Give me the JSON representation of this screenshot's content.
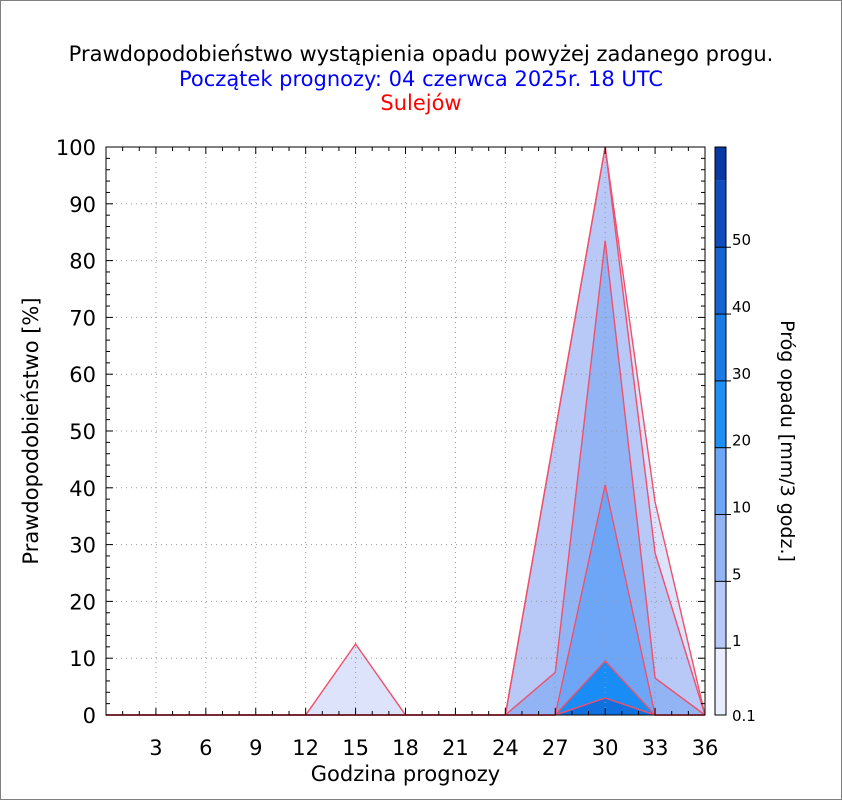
{
  "chart_data": {
    "type": "area",
    "title": "Prawdopodobieństwo wystąpienia opadu powyżej zadanego progu.",
    "subtitle": "Początek prognozy: 04 czerwca 2025r. 18 UTC",
    "location": "Sulejów",
    "xlabel": "Godzina prognozy",
    "ylabel": "Prawdopodobieństwo [%]",
    "colorbar_label": "Próg opadu [mm/3 godz.]",
    "xlim": [
      0,
      36
    ],
    "ylim": [
      0,
      100
    ],
    "xticks": [
      3,
      6,
      9,
      12,
      15,
      18,
      21,
      24,
      27,
      30,
      33,
      36
    ],
    "yticks": [
      0,
      10,
      20,
      30,
      40,
      50,
      60,
      70,
      80,
      90,
      100
    ],
    "grid": true,
    "x": [
      0,
      3,
      6,
      9,
      12,
      15,
      18,
      21,
      24,
      27,
      30,
      33,
      36
    ],
    "series": [
      {
        "name": "0.1",
        "color": "#dde3fb",
        "values": [
          0,
          0,
          0,
          0,
          0,
          12.5,
          0,
          0,
          0,
          50,
          100,
          37.5,
          0
        ]
      },
      {
        "name": "1",
        "color": "#b8c8f7",
        "values": [
          0,
          0,
          0,
          0,
          0,
          0,
          0,
          0,
          0,
          50,
          100,
          28.5,
          0
        ]
      },
      {
        "name": "5",
        "color": "#92b4f4",
        "values": [
          0,
          0,
          0,
          0,
          0,
          0,
          0,
          0,
          0,
          7.5,
          83.5,
          6.5,
          0
        ]
      },
      {
        "name": "10",
        "color": "#6ea6f7",
        "values": [
          0,
          0,
          0,
          0,
          0,
          0,
          0,
          0,
          0,
          0,
          40.5,
          0,
          0
        ]
      },
      {
        "name": "20",
        "color": "#1a8cf5",
        "values": [
          0,
          0,
          0,
          0,
          0,
          0,
          0,
          0,
          0,
          0,
          9.5,
          0,
          0
        ]
      },
      {
        "name": "30",
        "color": "#1070e0",
        "values": [
          0,
          0,
          0,
          0,
          0,
          0,
          0,
          0,
          0,
          0,
          3,
          0,
          0
        ]
      }
    ],
    "colorbar": {
      "levels": [
        "0.1",
        "1",
        "5",
        "10",
        "20",
        "30",
        "40",
        "50"
      ],
      "colors": [
        "#e8ecfc",
        "#b8c8f7",
        "#92b4f4",
        "#6ea6f7",
        "#1e90f5",
        "#1a7ae6",
        "#1664d2",
        "#104cbc",
        "#0a39a6"
      ]
    },
    "outline_color": "#f0506a"
  }
}
